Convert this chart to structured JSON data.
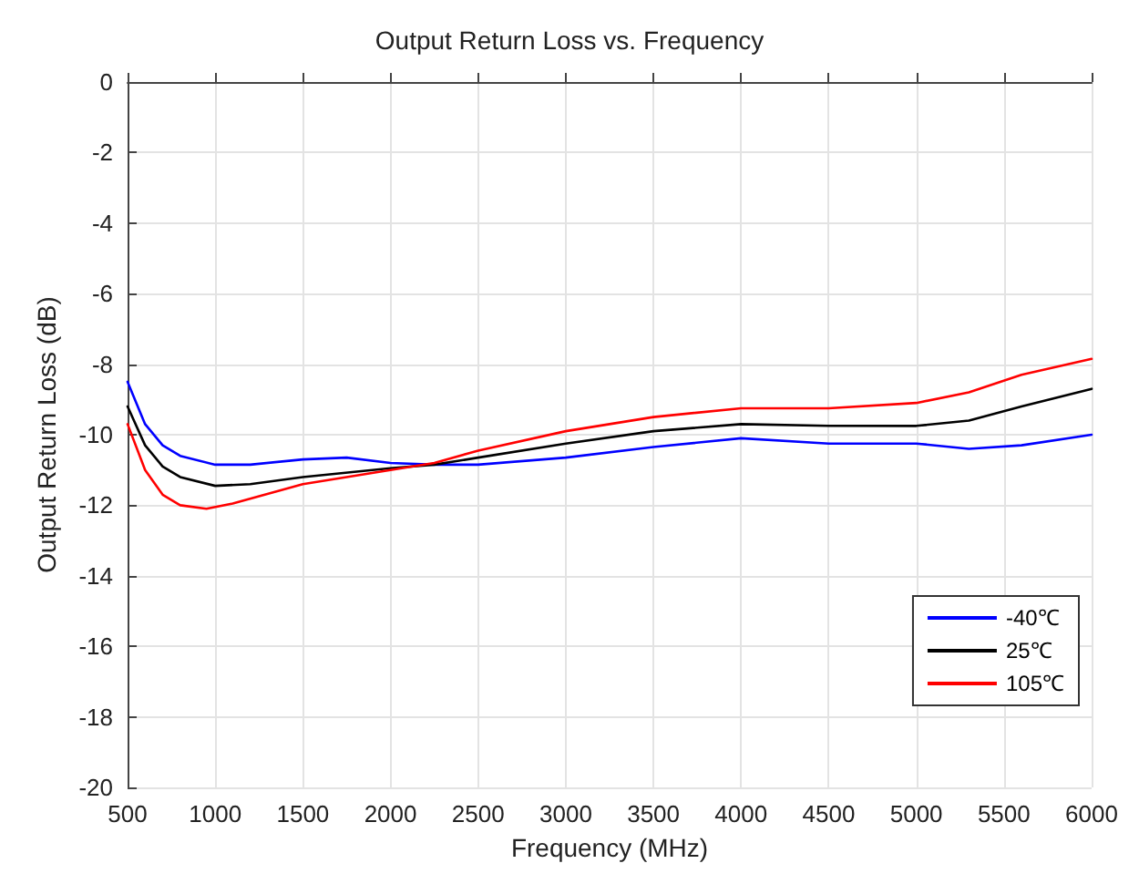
{
  "chart_data": {
    "type": "line",
    "title": "Output Return Loss vs. Frequency",
    "xlabel": "Frequency (MHz)",
    "ylabel": "Output Return Loss (dB)",
    "xlim": [
      500,
      6000
    ],
    "xticks": [
      500,
      1000,
      1500,
      2000,
      2500,
      3000,
      3500,
      4000,
      4500,
      5000,
      5500,
      6000
    ],
    "ylim": [
      -20,
      0
    ],
    "yticks": [
      -20,
      -18,
      -16,
      -14,
      -12,
      -10,
      -8,
      -6,
      -4,
      -2,
      0
    ],
    "grid": true,
    "legend": "bottom right",
    "marker": "none",
    "line_style": "solid",
    "series": [
      {
        "name": "-40℃",
        "color": "#0000ff",
        "x": [
          500,
          600,
          700,
          800,
          1000,
          1200,
          1500,
          1750,
          2000,
          2250,
          2500,
          3000,
          3500,
          4000,
          4500,
          5000,
          5300,
          5600,
          6000
        ],
        "values": [
          -8.5,
          -9.7,
          -10.3,
          -10.6,
          -10.85,
          -10.85,
          -10.7,
          -10.65,
          -10.8,
          -10.85,
          -10.85,
          -10.65,
          -10.35,
          -10.1,
          -10.25,
          -10.25,
          -10.4,
          -10.3,
          -10.0
        ]
      },
      {
        "name": "25℃",
        "color": "#000000",
        "x": [
          500,
          600,
          700,
          800,
          1000,
          1200,
          1500,
          2000,
          2250,
          2500,
          3000,
          3500,
          4000,
          4500,
          5000,
          5300,
          5600,
          6000
        ],
        "values": [
          -9.2,
          -10.3,
          -10.9,
          -11.2,
          -11.45,
          -11.4,
          -11.2,
          -10.95,
          -10.85,
          -10.65,
          -10.25,
          -9.9,
          -9.7,
          -9.75,
          -9.75,
          -9.6,
          -9.2,
          -8.7
        ]
      },
      {
        "name": "105℃",
        "color": "#ff0000",
        "x": [
          500,
          600,
          700,
          800,
          950,
          1100,
          1500,
          2000,
          2250,
          2500,
          3000,
          3500,
          4000,
          4500,
          5000,
          5300,
          5600,
          6000
        ],
        "values": [
          -9.7,
          -11.0,
          -11.7,
          -12.0,
          -12.1,
          -11.95,
          -11.4,
          -11.0,
          -10.8,
          -10.45,
          -9.9,
          -9.5,
          -9.25,
          -9.25,
          -9.1,
          -8.8,
          -8.3,
          -7.85
        ]
      }
    ]
  }
}
